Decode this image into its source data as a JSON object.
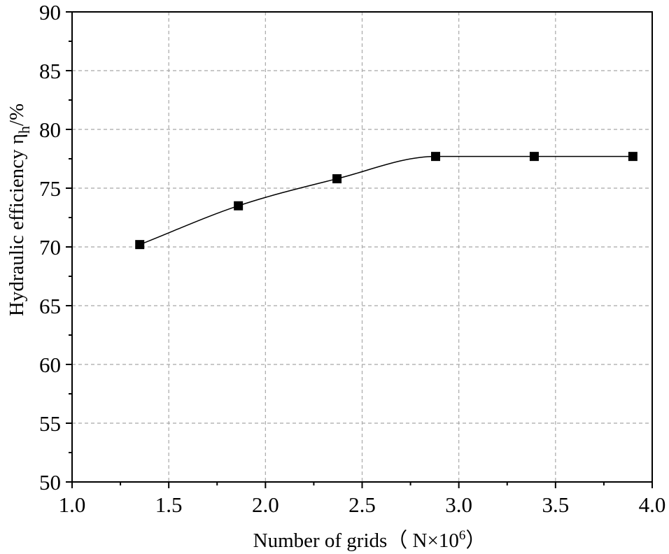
{
  "chart_data": {
    "type": "line",
    "title": "",
    "xlabel": "Number of grids（ N×10",
    "xlabel_superscript": "6",
    "xlabel_suffix": "）",
    "ylabel": "Hydraulic efficiency η",
    "ylabel_subscript": "h",
    "ylabel_suffix": "/%",
    "xlim": [
      1.0,
      4.0
    ],
    "ylim": [
      50,
      90
    ],
    "xticks": [
      "1.0",
      "1.5",
      "2.0",
      "2.5",
      "3.0",
      "3.5",
      "4.0"
    ],
    "yticks": [
      "50",
      "55",
      "60",
      "65",
      "70",
      "75",
      "80",
      "85",
      "90"
    ],
    "grid": true,
    "marker": "square",
    "line_style": "smooth",
    "series": [
      {
        "x": [
          1.35,
          1.86,
          2.37,
          2.88,
          3.39,
          3.9
        ],
        "y": [
          70.2,
          73.5,
          75.8,
          77.7,
          77.7,
          77.7
        ]
      }
    ]
  }
}
